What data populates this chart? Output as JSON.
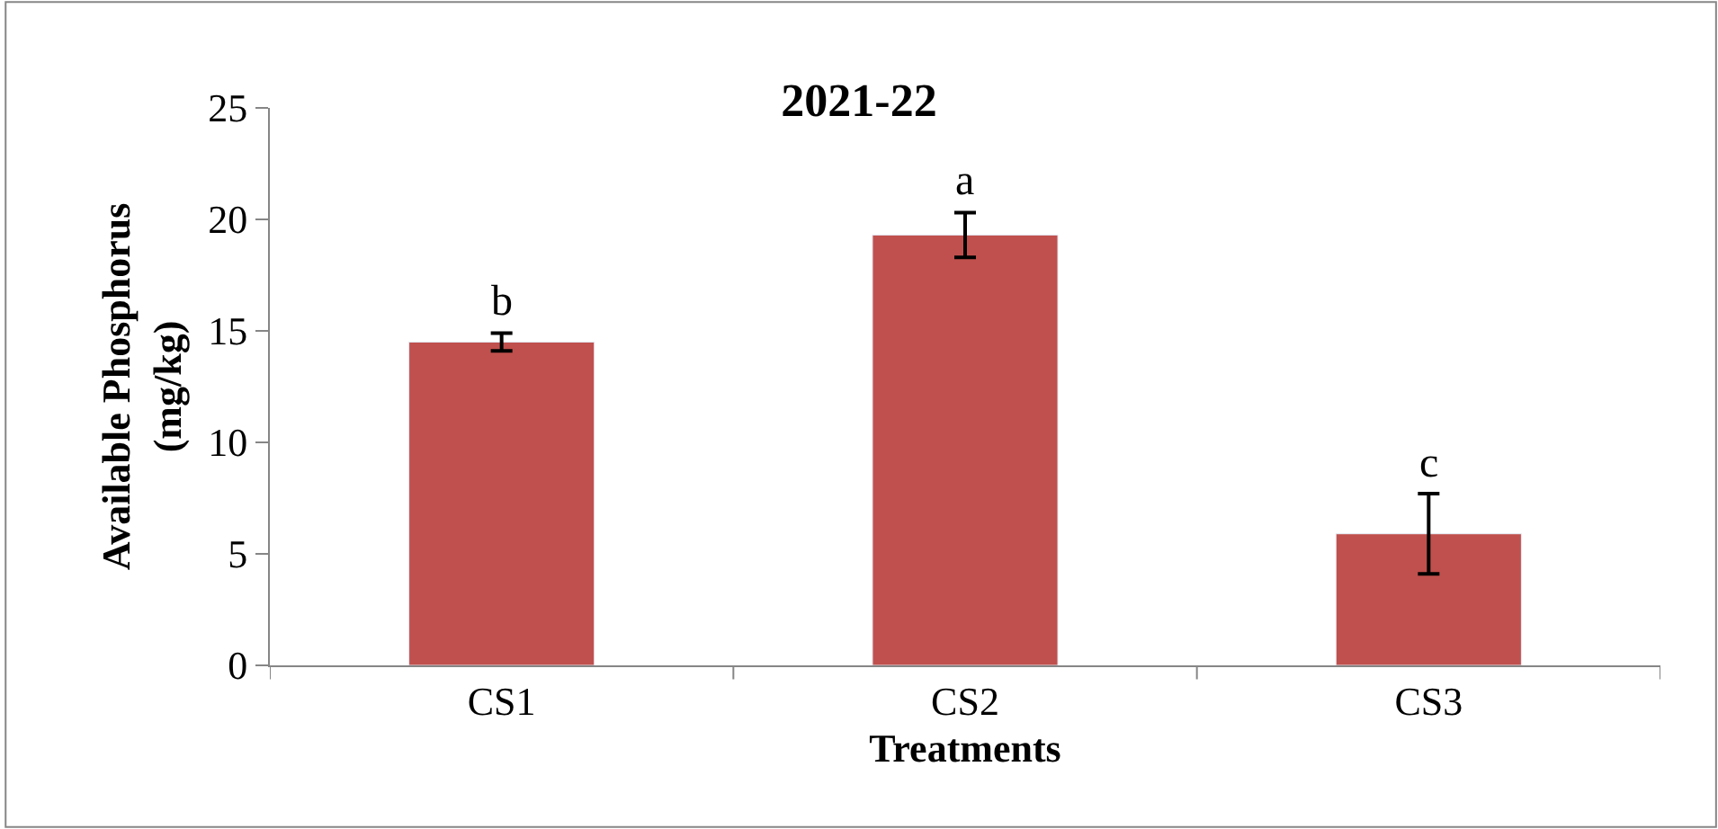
{
  "chart_data": {
    "type": "bar",
    "title": "2021-22",
    "xlabel": "Treatments",
    "ylabel": "Available Phosphorus\n(mg/kg)",
    "categories": [
      "CS1",
      "CS2",
      "CS3"
    ],
    "series": [
      {
        "color": "#c0504d",
        "values": [
          14.5,
          19.3,
          5.9
        ],
        "errors": [
          0.4,
          1.0,
          1.8
        ]
      }
    ],
    "ylim": [
      0,
      25
    ],
    "yticks": [
      0,
      5,
      10,
      15,
      20,
      25
    ],
    "annotations": [
      "b",
      "a",
      "c"
    ]
  }
}
